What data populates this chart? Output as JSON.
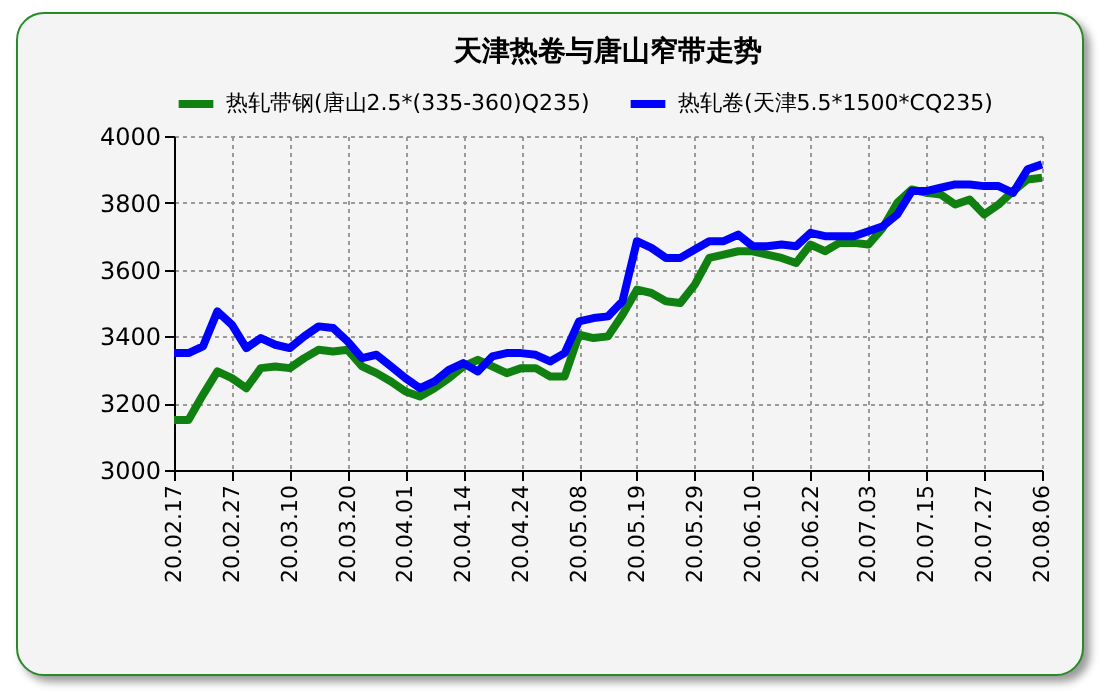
{
  "chart_data": {
    "type": "line",
    "title": "天津热卷与唐山窄带走势",
    "categories": [
      "20.02.17",
      null,
      null,
      null,
      "20.02.27",
      null,
      null,
      null,
      "20.03.10",
      null,
      null,
      null,
      "20.03.20",
      null,
      null,
      null,
      "20.04.01",
      null,
      null,
      null,
      "20.04.14",
      null,
      null,
      null,
      "20.04.24",
      null,
      null,
      null,
      "20.05.08",
      null,
      null,
      null,
      "20.05.19",
      null,
      null,
      null,
      "20.05.29",
      null,
      null,
      null,
      "20.06.10",
      null,
      null,
      null,
      "20.06.22",
      null,
      null,
      null,
      "20.07.03",
      null,
      null,
      null,
      "20.07.15",
      null,
      null,
      null,
      "20.07.27",
      null,
      null,
      null,
      "20.08.06"
    ],
    "series": [
      {
        "name": "热轧带钢(唐山2.5*(335-360)Q235)",
        "color": "#108010",
        "values": [
          3150,
          3150,
          3225,
          3295,
          3275,
          3245,
          3305,
          3310,
          3305,
          3335,
          3360,
          3355,
          3360,
          3310,
          3290,
          3265,
          3235,
          3220,
          3245,
          3275,
          3310,
          3330,
          3310,
          3290,
          3305,
          3305,
          3280,
          3280,
          3405,
          3395,
          3400,
          3465,
          3540,
          3530,
          3505,
          3500,
          3555,
          3635,
          3645,
          3655,
          3655,
          3645,
          3635,
          3620,
          3675,
          3655,
          3680,
          3680,
          3675,
          3725,
          3800,
          3840,
          3830,
          3825,
          3795,
          3810,
          3765,
          3795,
          3835,
          3870,
          3875
        ]
      },
      {
        "name": "热轧卷(天津5.5*1500*CQ235)",
        "color": "#0000ff",
        "values": [
          3350,
          3350,
          3370,
          3475,
          3435,
          3365,
          3395,
          3375,
          3365,
          3400,
          3430,
          3425,
          3385,
          3335,
          3345,
          3310,
          3275,
          3245,
          3265,
          3300,
          3320,
          3295,
          3340,
          3350,
          3350,
          3345,
          3325,
          3350,
          3445,
          3455,
          3460,
          3505,
          3685,
          3665,
          3635,
          3635,
          3660,
          3685,
          3685,
          3705,
          3670,
          3670,
          3675,
          3670,
          3710,
          3700,
          3700,
          3700,
          3715,
          3730,
          3765,
          3835,
          3835,
          3845,
          3855,
          3855,
          3850,
          3850,
          3830,
          3900,
          3915
        ]
      }
    ],
    "ylim": [
      3000,
      4000
    ],
    "yticks": [
      3000,
      3200,
      3400,
      3600,
      3800,
      4000
    ],
    "grid": true,
    "legend": "top",
    "marker": "none",
    "line_style": "solid"
  }
}
